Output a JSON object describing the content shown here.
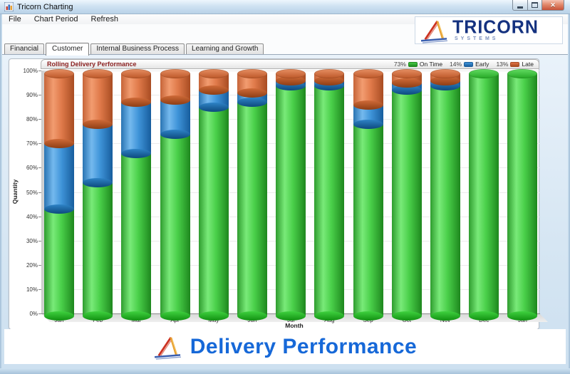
{
  "window": {
    "title": "Tricorn Charting",
    "minimize_label": "minimize",
    "maximize_label": "maximize",
    "close_label": "✕"
  },
  "menu": {
    "items": [
      "File",
      "Chart Period",
      "Refresh"
    ]
  },
  "brand": {
    "name": "TRICORN",
    "subtitle": "SYSTEMS"
  },
  "tabs": {
    "items": [
      {
        "label": "Financial",
        "active": false
      },
      {
        "label": "Customer",
        "active": true
      },
      {
        "label": "Internal Business Process",
        "active": false
      },
      {
        "label": "Learning and Growth",
        "active": false
      }
    ]
  },
  "chart": {
    "title": "Rolling Delivery Performance",
    "xlabel": "Month",
    "ylabel": "Quantity",
    "legend": [
      {
        "pct": "73%",
        "label": "On Time",
        "swatch": "#45c945",
        "border": "#1f8a1f"
      },
      {
        "pct": "14%",
        "label": "Early",
        "swatch": "#3e93d9",
        "border": "#1b5f9d"
      },
      {
        "pct": "13%",
        "label": "Late",
        "swatch": "#df7243",
        "border": "#a84c21"
      }
    ]
  },
  "chart_data": {
    "type": "bar",
    "stacked": true,
    "title": "Rolling Delivery Performance",
    "xlabel": "Month",
    "ylabel": "Quantity",
    "ylim": [
      0,
      100
    ],
    "yticks": [
      "0%",
      "10%",
      "20%",
      "30%",
      "40%",
      "50%",
      "60%",
      "70%",
      "80%",
      "90%",
      "100%"
    ],
    "grid": true,
    "legend_position": "top-right",
    "categories": [
      "Jan",
      "Feb",
      "Mar",
      "Apr",
      "May",
      "Jun",
      "Jul",
      "Aug",
      "Sep",
      "Oct",
      "Nov",
      "Dec",
      "Jan"
    ],
    "series": [
      {
        "name": "On Time",
        "overall_pct": "73%",
        "color": "#3fc43f",
        "values": [
          44,
          55,
          67,
          75,
          86,
          88,
          95,
          95,
          79,
          93,
          95,
          100,
          100
        ]
      },
      {
        "name": "Early",
        "overall_pct": "14%",
        "color": "#3b8ed6",
        "values": [
          27,
          24,
          21,
          14,
          7,
          4,
          2,
          2,
          8,
          3,
          2,
          0,
          0
        ]
      },
      {
        "name": "Late",
        "overall_pct": "13%",
        "color": "#dd7041",
        "values": [
          29,
          21,
          12,
          11,
          7,
          8,
          3,
          3,
          13,
          4,
          3,
          0,
          0
        ]
      }
    ]
  },
  "footer": {
    "title": "Delivery Performance"
  }
}
